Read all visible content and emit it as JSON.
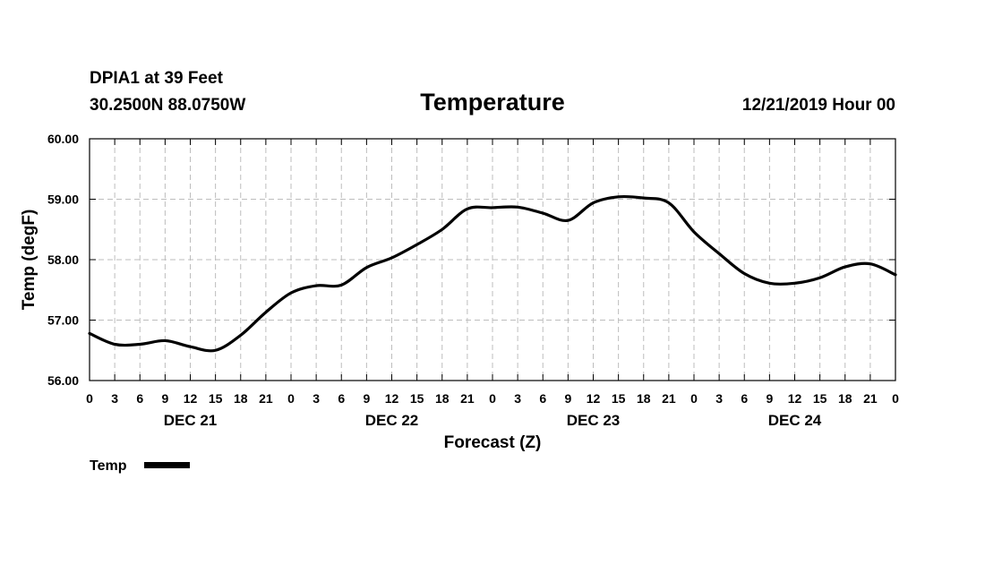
{
  "header": {
    "station": "DPIA1 at 39 Feet",
    "coords": "30.2500N 88.0750W",
    "title": "Temperature",
    "init": "12/21/2019 Hour 00"
  },
  "chart_data": {
    "type": "line",
    "title": "Temperature",
    "xlabel": "Forecast (Z)",
    "ylabel": "Temp (degF)",
    "ylim": [
      56.0,
      60.0
    ],
    "yticks": [
      56.0,
      57.0,
      58.0,
      59.0,
      60.0
    ],
    "ytick_labels": [
      "56.00",
      "57.00",
      "58.00",
      "59.00",
      "60.00"
    ],
    "xlim_hours": [
      0,
      96
    ],
    "xtick_labels": [
      "0",
      "3",
      "6",
      "9",
      "12",
      "15",
      "18",
      "21",
      "0",
      "3",
      "6",
      "9",
      "12",
      "15",
      "18",
      "21",
      "0",
      "3",
      "6",
      "9",
      "12",
      "15",
      "18",
      "21",
      "0",
      "3",
      "6",
      "9",
      "12",
      "15",
      "18",
      "21",
      "0"
    ],
    "day_labels": [
      "DEC 21",
      "DEC 22",
      "DEC 23",
      "DEC 24"
    ],
    "grid": true,
    "legend_position": "bottom-left",
    "series": [
      {
        "name": "Temp",
        "color": "#000000",
        "x": [
          "DEC 21 00Z",
          "DEC 21 03Z",
          "DEC 21 06Z",
          "DEC 21 09Z",
          "DEC 21 12Z",
          "DEC 21 15Z",
          "DEC 21 18Z",
          "DEC 21 21Z",
          "DEC 22 00Z",
          "DEC 22 03Z",
          "DEC 22 06Z",
          "DEC 22 09Z",
          "DEC 22 12Z",
          "DEC 22 15Z",
          "DEC 22 18Z",
          "DEC 22 21Z",
          "DEC 23 00Z",
          "DEC 23 03Z",
          "DEC 23 06Z",
          "DEC 23 09Z",
          "DEC 23 12Z",
          "DEC 23 15Z",
          "DEC 23 18Z",
          "DEC 23 21Z",
          "DEC 24 00Z",
          "DEC 24 03Z",
          "DEC 24 06Z",
          "DEC 24 09Z",
          "DEC 24 12Z",
          "DEC 24 15Z",
          "DEC 24 18Z",
          "DEC 24 21Z",
          "DEC 25 00Z"
        ],
        "values": [
          56.78,
          56.6,
          56.6,
          56.66,
          56.56,
          56.5,
          56.75,
          57.13,
          57.45,
          57.57,
          57.58,
          57.87,
          58.03,
          58.25,
          58.5,
          58.84,
          58.86,
          58.87,
          58.77,
          58.65,
          58.94,
          59.04,
          59.02,
          58.94,
          58.46,
          58.1,
          57.77,
          57.61,
          57.61,
          57.7,
          57.88,
          57.93,
          57.75
        ]
      }
    ]
  }
}
